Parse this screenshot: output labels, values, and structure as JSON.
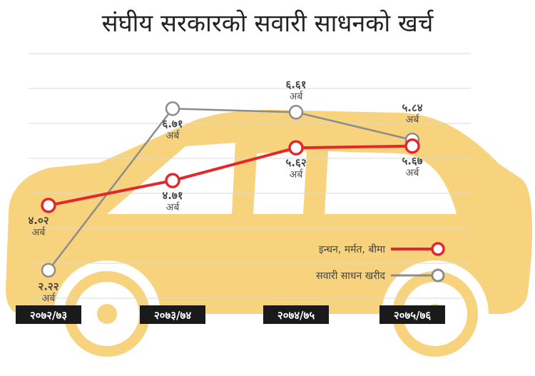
{
  "chart_data": {
    "type": "line",
    "title": "संघीय सरकारको सवारी साधनको खर्च",
    "categories": [
      "२०७२/७३",
      "२०७३/७४",
      "२०७४/७५",
      "२०७५/७६"
    ],
    "ylim": [
      1.5,
      8.5
    ],
    "grid": true,
    "unit": "अर्ब",
    "legend_position": "bottom-right",
    "series": [
      {
        "name": "इन्धन, मर्मत, बीमा",
        "color": "#e3272d",
        "values": [
          4.02,
          4.71,
          5.62,
          5.67
        ],
        "labels": [
          "४.०२",
          "४.७१",
          "५.६२",
          "५.६७"
        ]
      },
      {
        "name": "सवारी साधन खरीद",
        "color": "#8c8c8c",
        "values": [
          2.22,
          6.71,
          6.61,
          5.84
        ],
        "labels": [
          "२.२२",
          "६.७१",
          "६.६१",
          "५.८४"
        ]
      }
    ]
  },
  "colors": {
    "background_car": "#f7d37e",
    "grid": "#d9d9d9",
    "tick_bg": "#1a1a1a"
  }
}
